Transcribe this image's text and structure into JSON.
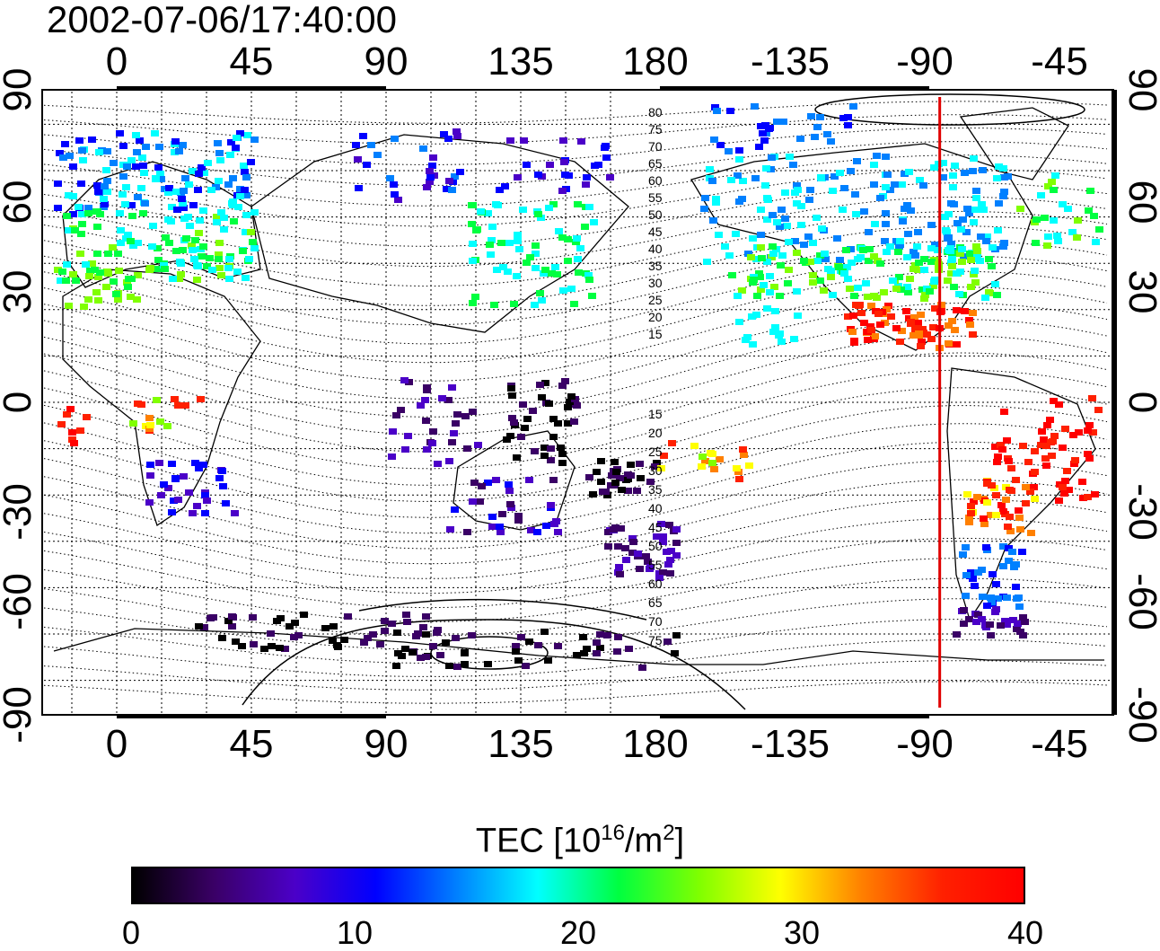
{
  "timestamp": "2002-07-06/17:40:00",
  "map": {
    "type": "TEC global map",
    "lon_ticks_top": [
      "0",
      "45",
      "90",
      "135",
      "180",
      "-135",
      "-90",
      "-45"
    ],
    "lon_ticks_bottom": [
      "0",
      "45",
      "90",
      "135",
      "180",
      "-135",
      "-90",
      "-45"
    ],
    "lat_ticks_left": [
      "90",
      "60",
      "30",
      "0",
      "-30",
      "-60",
      "-90"
    ],
    "lat_ticks_right": [
      "90",
      "60",
      "30",
      "0",
      "-30",
      "-60",
      "-90"
    ],
    "contour_labels_north": [
      "80",
      "75",
      "70",
      "65",
      "60",
      "55",
      "50",
      "45",
      "40",
      "35",
      "30",
      "25",
      "20",
      "15"
    ],
    "contour_labels_south": [
      "15",
      "20",
      "25",
      "30",
      "35",
      "40",
      "45",
      "50",
      "55",
      "60",
      "65",
      "70",
      "75"
    ],
    "marker_line_longitude": -85,
    "marker_line_color": "#e00000",
    "grid": true
  },
  "colorbar": {
    "title_prefix": "TEC  [10",
    "title_exp1": "16",
    "title_mid": "/m",
    "title_exp2": "2",
    "title_suffix": "]",
    "ticks": [
      "0",
      "10",
      "20",
      "30",
      "40"
    ],
    "min": 0,
    "max": 40,
    "colors": [
      "#000000",
      "#3a0066",
      "#4b00c8",
      "#0000ff",
      "#0080ff",
      "#00ffff",
      "#00ff40",
      "#80ff00",
      "#ffff00",
      "#ff8000",
      "#ff2000",
      "#ff0000"
    ]
  }
}
